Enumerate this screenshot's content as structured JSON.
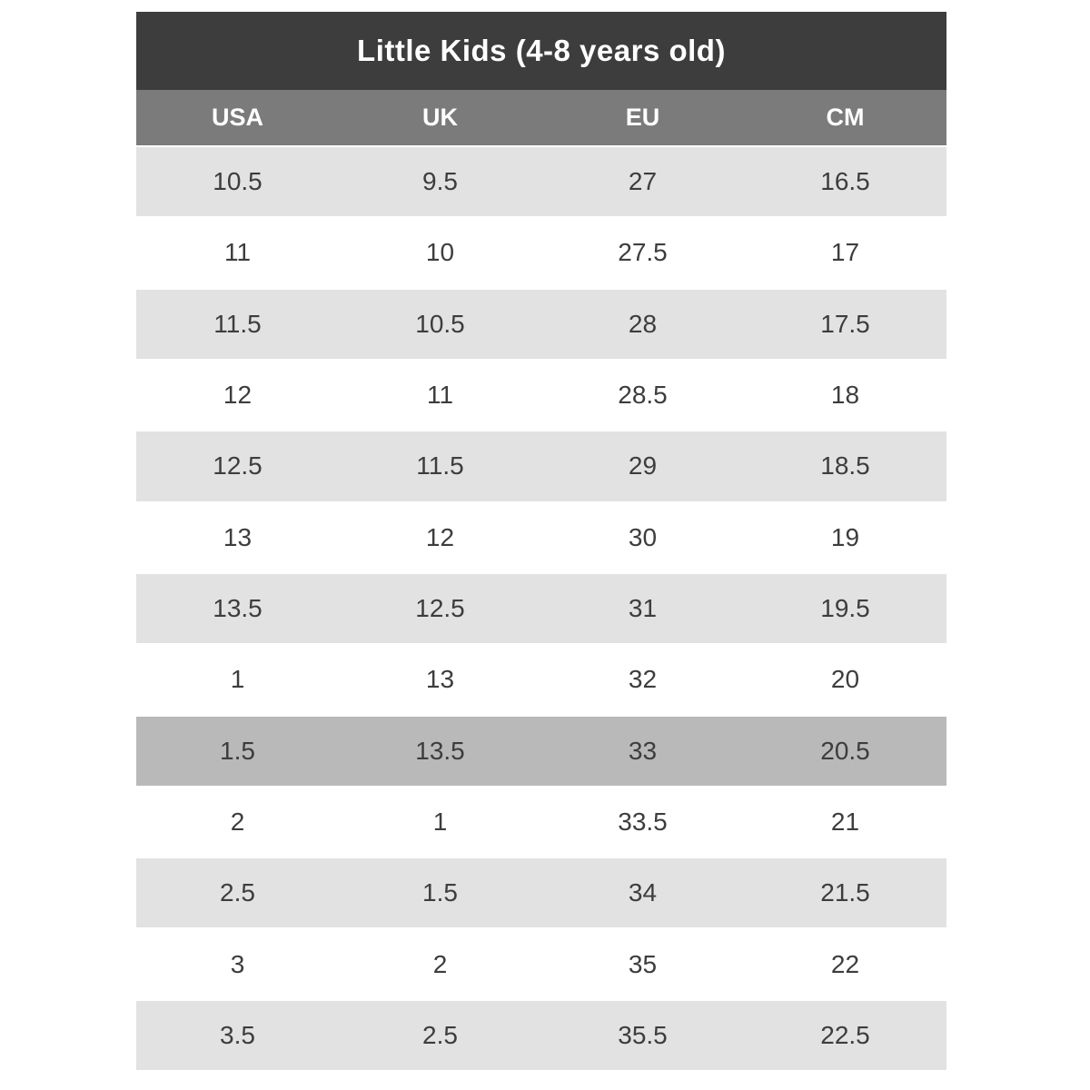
{
  "page": {
    "background": "#ffffff"
  },
  "table": {
    "title": "Little Kids (4-8 years old)",
    "columns": [
      "USA",
      "UK",
      "EU",
      "CM"
    ],
    "rows": [
      {
        "variant": "striped",
        "cells": [
          "10.5",
          "9.5",
          "27",
          "16.5"
        ]
      },
      {
        "variant": "plain",
        "cells": [
          "11",
          "10",
          "27.5",
          "17"
        ]
      },
      {
        "variant": "striped",
        "cells": [
          "11.5",
          "10.5",
          "28",
          "17.5"
        ]
      },
      {
        "variant": "plain",
        "cells": [
          "12",
          "11",
          "28.5",
          "18"
        ]
      },
      {
        "variant": "striped",
        "cells": [
          "12.5",
          "11.5",
          "29",
          "18.5"
        ]
      },
      {
        "variant": "plain",
        "cells": [
          "13",
          "12",
          "30",
          "19"
        ]
      },
      {
        "variant": "striped",
        "cells": [
          "13.5",
          "12.5",
          "31",
          "19.5"
        ]
      },
      {
        "variant": "plain",
        "cells": [
          "1",
          "13",
          "32",
          "20"
        ]
      },
      {
        "variant": "highlight",
        "cells": [
          "1.5",
          "13.5",
          "33",
          "20.5"
        ]
      },
      {
        "variant": "plain",
        "cells": [
          "2",
          "1",
          "33.5",
          "21"
        ]
      },
      {
        "variant": "striped",
        "cells": [
          "2.5",
          "1.5",
          "34",
          "21.5"
        ]
      },
      {
        "variant": "plain",
        "cells": [
          "3",
          "2",
          "35",
          "22"
        ]
      },
      {
        "variant": "striped",
        "cells": [
          "3.5",
          "2.5",
          "35.5",
          "22.5"
        ]
      }
    ],
    "colors": {
      "title_bg": "#3d3d3d",
      "title_text": "#ffffff",
      "header_bg": "#7b7b7b",
      "header_text": "#ffffff",
      "row_striped_bg": "#e2e2e2",
      "row_plain_bg": "#ffffff",
      "row_highlight_bg": "#b9b9b9",
      "cell_text": "#3d3d3d"
    }
  },
  "chart_data": {
    "type": "table",
    "title": "Little Kids (4-8 years old)",
    "columns": [
      "USA",
      "UK",
      "EU",
      "CM"
    ],
    "rows": [
      [
        "10.5",
        "9.5",
        "27",
        "16.5"
      ],
      [
        "11",
        "10",
        "27.5",
        "17"
      ],
      [
        "11.5",
        "10.5",
        "28",
        "17.5"
      ],
      [
        "12",
        "11",
        "28.5",
        "18"
      ],
      [
        "12.5",
        "11.5",
        "29",
        "18.5"
      ],
      [
        "13",
        "12",
        "30",
        "19"
      ],
      [
        "13.5",
        "12.5",
        "31",
        "19.5"
      ],
      [
        "1",
        "13",
        "32",
        "20"
      ],
      [
        "1.5",
        "13.5",
        "33",
        "20.5"
      ],
      [
        "2",
        "1",
        "33.5",
        "21"
      ],
      [
        "2.5",
        "1.5",
        "34",
        "21.5"
      ],
      [
        "3",
        "2",
        "35",
        "22"
      ],
      [
        "3.5",
        "2.5",
        "35.5",
        "22.5"
      ]
    ],
    "highlighted_row_index": 8,
    "layout": {
      "striping": "alternate rows light gray starting with first data row",
      "column_alignment": "center"
    }
  }
}
